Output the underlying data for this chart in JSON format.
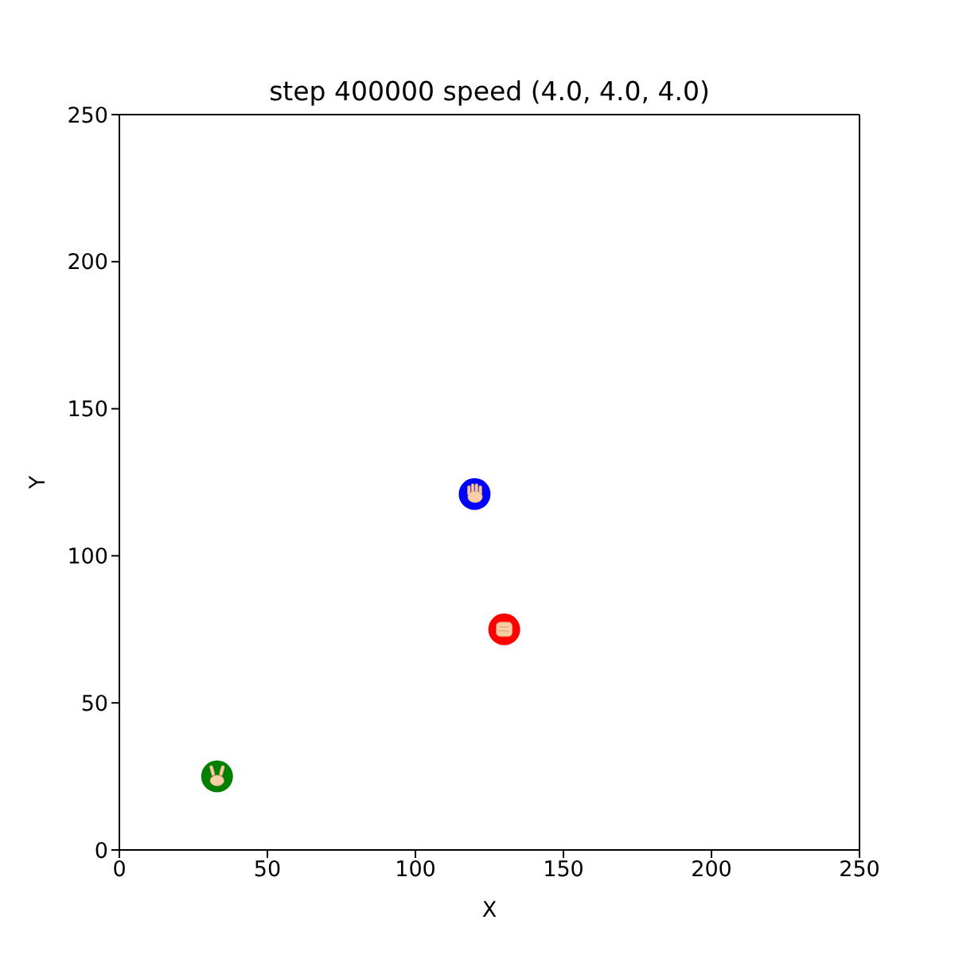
{
  "chart_data": {
    "type": "scatter",
    "title": "step 400000 speed (4.0, 4.0, 4.0)",
    "xlabel": "X",
    "ylabel": "Y",
    "xlim": [
      0,
      250
    ],
    "xticks": [
      0,
      50,
      100,
      150,
      200,
      250
    ],
    "ylim": [
      0,
      250
    ],
    "yticks": [
      0,
      50,
      100,
      150,
      200,
      250
    ],
    "marker": "circle",
    "series": [
      {
        "color": "#0000ff",
        "x": [
          120
        ],
        "values": [
          121
        ]
      },
      {
        "color": "#ff0000",
        "x": [
          130
        ],
        "values": [
          75
        ]
      },
      {
        "color": "#008000",
        "x": [
          33
        ],
        "values": [
          25
        ]
      }
    ]
  }
}
